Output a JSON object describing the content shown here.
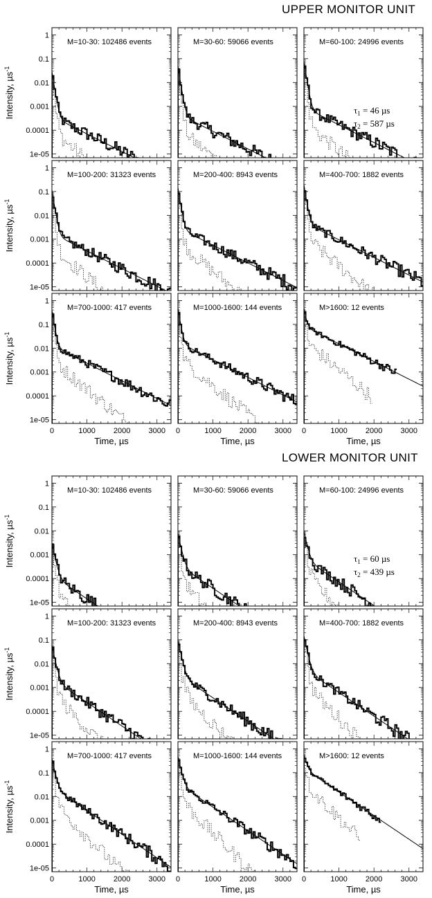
{
  "figure": {
    "units": [
      {
        "title": "UPPER MONITOR UNIT",
        "tau1": "46",
        "tau2": "587"
      },
      {
        "title": "LOWER MONITOR UNIT",
        "tau1": "60",
        "tau2": "439"
      }
    ],
    "tau_unit": "µs",
    "ylabel": "Intensity, µs",
    "ylabel_exp": "-1",
    "xlabel": "Time, µs",
    "xticks": [
      "0",
      "1000",
      "2000",
      "3000"
    ],
    "yticks": [
      "1",
      "0.1",
      "0.01",
      "0.001",
      "0.0001",
      "1e-05"
    ]
  },
  "chart_data": [
    {
      "type": "line",
      "unit": "upper",
      "label": "M=10-30: 102486 events",
      "ylim": [
        7e-06,
        2
      ],
      "xlim": [
        0,
        3400
      ],
      "log_y": true,
      "y0": 0.03,
      "a": 0.02,
      "tau1": 46,
      "b": 0.00026,
      "tau2": 587,
      "dotted_tail": 0.2
    },
    {
      "type": "line",
      "unit": "upper",
      "label": "M=30-60: 59066 events",
      "ylim": [
        7e-06,
        2
      ],
      "xlim": [
        0,
        3400
      ],
      "log_y": true,
      "y0": 0.05,
      "a": 0.04,
      "tau1": 46,
      "b": 0.0004,
      "tau2": 587,
      "dotted_tail": 0.3
    },
    {
      "type": "line",
      "unit": "upper",
      "label": "M=60-100: 24996 events",
      "ylim": [
        7e-06,
        2
      ],
      "xlim": [
        0,
        3400
      ],
      "log_y": true,
      "y0": 0.08,
      "a": 0.06,
      "tau1": 46,
      "b": 0.0007,
      "tau2": 587,
      "dotted_tail": 0.4,
      "tau_label": true
    },
    {
      "type": "line",
      "unit": "upper",
      "label": "M=100-200: 31323 events",
      "ylim": [
        7e-06,
        2
      ],
      "xlim": [
        0,
        3400
      ],
      "log_y": true,
      "y0": 0.12,
      "a": 0.1,
      "tau1": 46,
      "b": 0.0015,
      "tau2": 587,
      "dotted_tail": 0.6
    },
    {
      "type": "line",
      "unit": "upper",
      "label": "M=200-400: 8943 events",
      "ylim": [
        7e-06,
        2
      ],
      "xlim": [
        0,
        3400
      ],
      "log_y": true,
      "y0": 0.15,
      "a": 0.12,
      "tau1": 46,
      "b": 0.0025,
      "tau2": 587,
      "dotted_tail": 0.8
    },
    {
      "type": "line",
      "unit": "upper",
      "label": "M=400-700: 1882 events",
      "ylim": [
        7e-06,
        2
      ],
      "xlim": [
        0,
        3400
      ],
      "log_y": true,
      "y0": 0.2,
      "a": 0.15,
      "tau1": 46,
      "b": 0.004,
      "tau2": 587,
      "dotted_tail": 1.2
    },
    {
      "type": "line",
      "unit": "upper",
      "label": "M=700-1000: 417 events",
      "ylim": [
        7e-06,
        2
      ],
      "xlim": [
        0,
        3400
      ],
      "log_y": true,
      "y0": 0.4,
      "a": 0.3,
      "tau1": 46,
      "b": 0.01,
      "tau2": 587,
      "dotted_tail": 1.5
    },
    {
      "type": "line",
      "unit": "upper",
      "label": "M=1000-1600: 144 events",
      "ylim": [
        7e-06,
        2
      ],
      "xlim": [
        0,
        3400
      ],
      "log_y": true,
      "y0": 0.5,
      "a": 0.4,
      "tau1": 46,
      "b": 0.015,
      "tau2": 587,
      "dotted_tail": 1.8
    },
    {
      "type": "line",
      "unit": "upper",
      "label": "M>1600: 12 events",
      "ylim": [
        7e-06,
        2
      ],
      "xlim": [
        0,
        3400
      ],
      "log_y": true,
      "y0": 0.5,
      "a": 0.3,
      "tau1": 46,
      "b": 0.06,
      "tau2": 587,
      "dotted_tail": 0.9,
      "stop_x": 2650
    },
    {
      "type": "line",
      "unit": "lower",
      "label": "M=10-30: 102486 events",
      "ylim": [
        7e-06,
        2
      ],
      "xlim": [
        0,
        3400
      ],
      "log_y": true,
      "y0": 0.003,
      "a": 0.0025,
      "tau1": 60,
      "b": 0.00012,
      "tau2": 439,
      "dotted_tail": 0.3
    },
    {
      "type": "line",
      "unit": "lower",
      "label": "M=30-60: 59066 events",
      "ylim": [
        7e-06,
        2
      ],
      "xlim": [
        0,
        3400
      ],
      "log_y": true,
      "y0": 0.008,
      "a": 0.006,
      "tau1": 60,
      "b": 0.0003,
      "tau2": 439,
      "dotted_tail": 0.4
    },
    {
      "type": "line",
      "unit": "lower",
      "label": "M=60-100: 24996 events",
      "ylim": [
        7e-06,
        2
      ],
      "xlim": [
        0,
        3400
      ],
      "log_y": true,
      "y0": 0.01,
      "a": 0.008,
      "tau1": 60,
      "b": 0.0006,
      "tau2": 439,
      "dotted_tail": 0.4,
      "tau_label": true
    },
    {
      "type": "line",
      "unit": "lower",
      "label": "M=100-200: 31323 events",
      "ylim": [
        7e-06,
        2
      ],
      "xlim": [
        0,
        3400
      ],
      "log_y": true,
      "y0": 0.06,
      "a": 0.05,
      "tau1": 60,
      "b": 0.002,
      "tau2": 439,
      "dotted_tail": 0.6
    },
    {
      "type": "line",
      "unit": "lower",
      "label": "M=200-400: 8943 events",
      "ylim": [
        7e-06,
        2
      ],
      "xlim": [
        0,
        3400
      ],
      "log_y": true,
      "y0": 0.1,
      "a": 0.08,
      "tau1": 60,
      "b": 0.003,
      "tau2": 439,
      "dotted_tail": 0.8
    },
    {
      "type": "line",
      "unit": "lower",
      "label": "M=400-700: 1882 events",
      "ylim": [
        7e-06,
        2
      ],
      "xlim": [
        0,
        3400
      ],
      "log_y": true,
      "y0": 0.15,
      "a": 0.12,
      "tau1": 60,
      "b": 0.005,
      "tau2": 439,
      "dotted_tail": 1.2
    },
    {
      "type": "line",
      "unit": "lower",
      "label": "M=700-1000: 417 events",
      "ylim": [
        7e-06,
        2
      ],
      "xlim": [
        0,
        3400
      ],
      "log_y": true,
      "y0": 0.4,
      "a": 0.3,
      "tau1": 60,
      "b": 0.02,
      "tau2": 439,
      "dotted_tail": 1.5
    },
    {
      "type": "line",
      "unit": "lower",
      "label": "M=1000-1600: 144 events",
      "ylim": [
        7e-06,
        2
      ],
      "xlim": [
        0,
        3400
      ],
      "log_y": true,
      "y0": 0.5,
      "a": 0.4,
      "tau1": 60,
      "b": 0.03,
      "tau2": 439,
      "dotted_tail": 1.8
    },
    {
      "type": "line",
      "unit": "lower",
      "label": "M>1600: 12 events",
      "ylim": [
        7e-06,
        2
      ],
      "xlim": [
        0,
        3400
      ],
      "log_y": true,
      "y0": 0.6,
      "a": 0.3,
      "tau1": 60,
      "b": 0.1,
      "tau2": 439,
      "dotted_tail": 0.9,
      "stop_x": 2200
    }
  ]
}
